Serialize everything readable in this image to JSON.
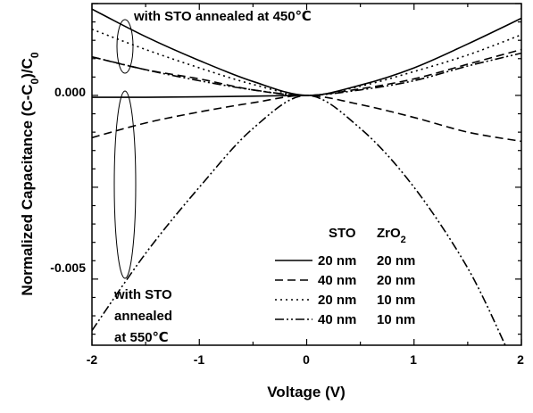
{
  "chart_data": {
    "type": "line",
    "xlabel": "Voltage (V)",
    "ylabel_main": "Normalized Capacitance (C-C",
    "ylabel_sub1": "0",
    "ylabel_mid": ")/C",
    "ylabel_sub2": "0",
    "xlim": [
      -2,
      2
    ],
    "ylim": [
      -0.0068,
      0.0025
    ],
    "x_ticks": [
      -2,
      -1,
      0,
      1,
      2
    ],
    "x_tick_labels": [
      "-2",
      "-1",
      "0",
      "1",
      "2"
    ],
    "y_ticks": [
      0.0,
      -0.005
    ],
    "y_tick_labels": [
      "0.000",
      "-0.005"
    ],
    "legend": {
      "position": "lower-right",
      "header_col1": "STO",
      "header_col2": "ZrO",
      "header_col2_sub": "2",
      "entries": [
        {
          "sto": "20 nm",
          "zro2": "20 nm",
          "style": "solid"
        },
        {
          "sto": "40 nm",
          "zro2": "20 nm",
          "style": "dashed"
        },
        {
          "sto": "20 nm",
          "zro2": "10 nm",
          "style": "dotted"
        },
        {
          "sto": "40 nm",
          "zro2": "10 nm",
          "style": "dashdotdot"
        }
      ]
    },
    "annotations": {
      "top": "with STO annealed at 450℃",
      "bottom_line1": "with STO",
      "bottom_line2": "annealed",
      "bottom_line3": "at 550℃"
    },
    "series": [
      {
        "style": "solid",
        "x": [
          -2.0,
          -1.5,
          -1.0,
          -0.5,
          0.0,
          0.5,
          1.0,
          1.5,
          2.0
        ],
        "y": [
          0.00235,
          0.0016,
          0.00095,
          0.00038,
          0.0,
          0.00028,
          0.00075,
          0.0014,
          0.0021
        ]
      },
      {
        "style": "solid",
        "x": [
          -2.0,
          -1.5,
          -1.0,
          -0.5,
          0.0
        ],
        "y": [
          -5e-05,
          -5e-05,
          -4e-05,
          -2e-05,
          0.0
        ]
      },
      {
        "style": "dashed",
        "x": [
          -2.0,
          -1.5,
          -1.0,
          -0.5,
          0.0,
          0.5,
          1.0,
          1.5,
          2.0
        ],
        "y": [
          0.00105,
          0.0007,
          0.00045,
          0.00015,
          0.0,
          0.00018,
          0.00045,
          0.00085,
          0.00125
        ]
      },
      {
        "style": "dashed",
        "x": [
          -2.0,
          -1.5,
          -1.0,
          -0.5,
          0.0,
          0.5,
          1.0,
          1.5,
          2.0
        ],
        "y": [
          -0.00115,
          -0.00075,
          -0.00045,
          -0.0002,
          0.0,
          -0.00025,
          -0.0006,
          -0.001,
          -0.00125
        ]
      },
      {
        "style": "dotted",
        "x": [
          -2.0,
          -1.5,
          -1.0,
          -0.5,
          0.0,
          0.5,
          1.0,
          1.5,
          2.0
        ],
        "y": [
          0.0018,
          0.00125,
          0.00075,
          0.0003,
          0.0,
          0.00025,
          0.00065,
          0.0011,
          0.00165
        ]
      },
      {
        "style": "dashdotdot",
        "x": [
          -2.0,
          -1.5,
          -1.0,
          -0.5,
          0.0,
          0.5,
          1.0,
          1.5,
          2.0
        ],
        "y": [
          0.00105,
          0.0007,
          0.0004,
          0.00015,
          0.0,
          0.00015,
          0.0004,
          0.0008,
          0.00115
        ]
      },
      {
        "style": "dashdotdot",
        "x": [
          -2.0,
          -1.5,
          -1.0,
          -0.5,
          0.0,
          0.5,
          1.0,
          1.5,
          1.85
        ],
        "y": [
          -0.0064,
          -0.0043,
          -0.0025,
          -0.0009,
          0.0,
          -0.0009,
          -0.0025,
          -0.0047,
          -0.0068
        ]
      }
    ]
  }
}
